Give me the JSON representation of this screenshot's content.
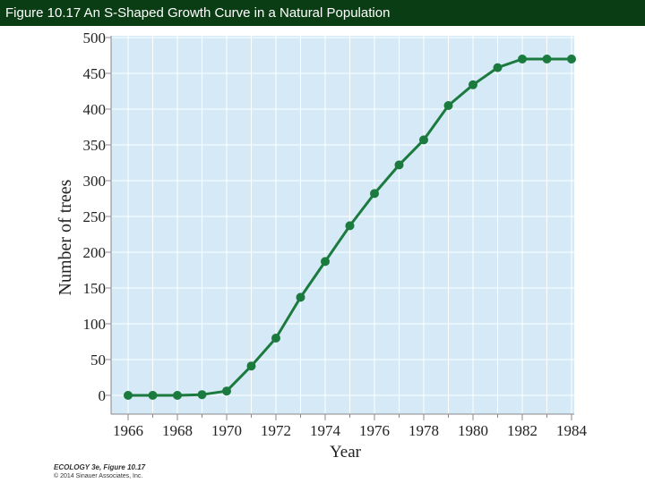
{
  "header": {
    "title": "Figure 10.17 An S-Shaped Growth Curve in a Natural Population"
  },
  "credit": {
    "line1": "ECOLOGY 3e, Figure 10.17",
    "line2": "© 2014 Sinauer Associates, Inc."
  },
  "colors": {
    "title_bar": "#0b3d14",
    "plot_background": "#d6e9f7",
    "series": "#1b7a3e",
    "gridline": "#ffffff",
    "axis": "#888888"
  },
  "chart_data": {
    "type": "line",
    "title": "",
    "xlabel": "Year",
    "ylabel": "Number of trees",
    "xlim": [
      1966,
      1984
    ],
    "ylim": [
      0,
      500
    ],
    "xticks": [
      1966,
      1968,
      1970,
      1972,
      1974,
      1976,
      1978,
      1980,
      1982,
      1984
    ],
    "yticks": [
      0,
      50,
      100,
      150,
      200,
      250,
      300,
      350,
      400,
      450,
      500
    ],
    "grid": true,
    "markers": true,
    "x": [
      1966,
      1967,
      1968,
      1969,
      1970,
      1971,
      1972,
      1973,
      1974,
      1975,
      1976,
      1977,
      1978,
      1979,
      1980,
      1981,
      1982,
      1983,
      1984
    ],
    "series": [
      {
        "values": [
          0,
          0,
          0,
          1,
          6,
          41,
          80,
          137,
          187,
          237,
          282,
          322,
          357,
          405,
          434,
          458,
          470,
          470,
          470
        ]
      }
    ]
  }
}
